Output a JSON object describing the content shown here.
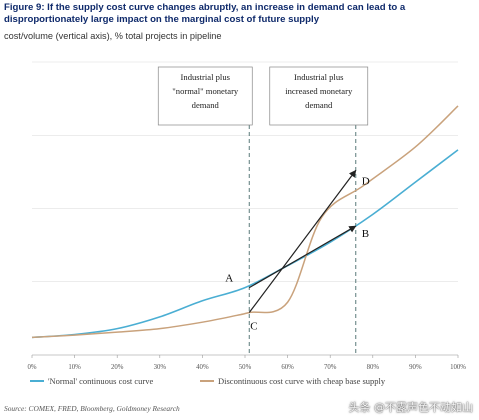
{
  "header": {
    "title": "Figure 9: If the supply cost curve changes abruptly, an increase in demand can lead to a disproportionately large impact on the marginal cost of future supply",
    "subtitle": "cost/volume (vertical axis), % total projects in pipeline"
  },
  "footer": {
    "source": "Source: COMEX, FRED, Bloomberg, Goldmoney Research",
    "watermark": "头条 @不露声色不动如山"
  },
  "colors": {
    "normal_curve": "#4aaed3",
    "discontinuous_curve": "#c9a27c",
    "dashed_lines": "#5a7a7a",
    "arrows": "#222222",
    "title": "#0f2a6b"
  },
  "chart_data": {
    "type": "line",
    "x_ticks": [
      "0%",
      "10%",
      "20%",
      "30%",
      "40%",
      "50%",
      "60%",
      "70%",
      "80%",
      "90%",
      "100%"
    ],
    "xlim": [
      0,
      100
    ],
    "ylim": [
      0,
      100
    ],
    "y_tick_labels": false,
    "series": [
      {
        "name": "'Normal' continuous cost curve",
        "color": "#4aaed3",
        "x": [
          0,
          10,
          20,
          30,
          40,
          50,
          60,
          70,
          80,
          90,
          100
        ],
        "y": [
          6,
          7,
          9,
          13,
          18.5,
          23,
          30.5,
          38.5,
          48,
          59,
          70
        ]
      },
      {
        "name": "Discontinuous cost curve with cheap base supply",
        "color": "#c9a27c",
        "x": [
          0,
          10,
          20,
          30,
          40,
          48,
          51,
          60,
          68,
          78,
          90,
          100
        ],
        "y": [
          6,
          6.8,
          7.8,
          9,
          11.2,
          13.5,
          14.5,
          18,
          47,
          58,
          71,
          85
        ]
      }
    ],
    "vertical_markers": [
      {
        "x": 51,
        "label_lines": [
          "Industrial plus",
          "\"normal\" monetary",
          "demand"
        ]
      },
      {
        "x": 76,
        "label_lines": [
          "Industrial plus",
          "increased monetary",
          "demand"
        ]
      }
    ],
    "points": [
      {
        "label": "A",
        "x": 51,
        "y": 23
      },
      {
        "label": "B",
        "x": 76,
        "y": 44
      },
      {
        "label": "C",
        "x": 51,
        "y": 14.5
      },
      {
        "label": "D",
        "x": 76,
        "y": 63
      }
    ],
    "arrows": [
      {
        "from": "A",
        "to": "B"
      },
      {
        "from": "C",
        "to": "D"
      }
    ],
    "legend_position": "bottom"
  }
}
